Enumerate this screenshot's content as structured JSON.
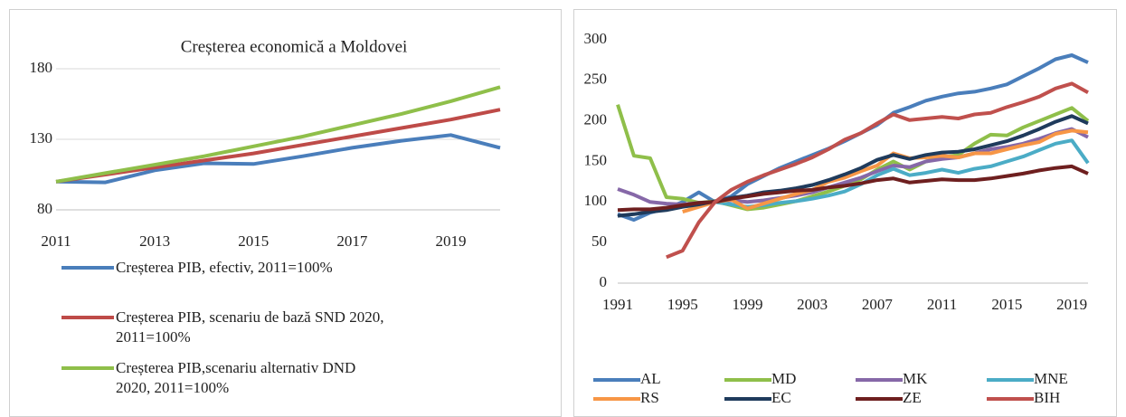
{
  "chart_data": [
    {
      "type": "line",
      "title": "Creșterea economică a Moldovei",
      "x": [
        2011,
        2012,
        2013,
        2014,
        2015,
        2016,
        2017,
        2018,
        2019,
        2020
      ],
      "xlim": [
        2011,
        2020
      ],
      "xticks": [
        2011,
        2013,
        2015,
        2017,
        2019
      ],
      "ylim": [
        80,
        180
      ],
      "yticks": [
        80,
        130,
        180
      ],
      "grid": true,
      "legend": "bottom",
      "series": [
        {
          "name": "Creșterea PIB, efectiv, 2011=100%",
          "color": "#4a7ebb",
          "values": [
            100,
            99.5,
            108,
            113,
            112.5,
            118,
            124,
            129,
            133,
            124
          ]
        },
        {
          "name": "Creșterea PIB, scenariu de bază SND 2020, 2011=100%",
          "color": "#be4b48",
          "values": [
            100,
            105,
            110,
            115,
            120,
            126,
            132,
            138,
            144,
            151
          ]
        },
        {
          "name": "Creșterea PIB,scenariu alternativ DND 2020, 2011=100%",
          "color": "#8fbf4a",
          "values": [
            100,
            106,
            112,
            118,
            125,
            132,
            140,
            148,
            157,
            167
          ]
        }
      ]
    },
    {
      "type": "line",
      "x": [
        1991,
        1992,
        1993,
        1994,
        1995,
        1996,
        1997,
        1998,
        1999,
        2000,
        2001,
        2002,
        2003,
        2004,
        2005,
        2006,
        2007,
        2008,
        2009,
        2010,
        2011,
        2012,
        2013,
        2014,
        2015,
        2016,
        2017,
        2018,
        2019,
        2020
      ],
      "xlim": [
        1991,
        2020
      ],
      "xticks": [
        1991,
        1995,
        1999,
        2003,
        2007,
        2011,
        2015,
        2019
      ],
      "ylim": [
        0,
        300
      ],
      "yticks": [
        0,
        50,
        100,
        150,
        200,
        250,
        300
      ],
      "grid": false,
      "legend": "bottom",
      "series": [
        {
          "name": "AL",
          "color": "#4a7ebb",
          "values": [
            85,
            78,
            87,
            92,
            100,
            112,
            100,
            107,
            122,
            132,
            142,
            150,
            158,
            166,
            175,
            185,
            195,
            210,
            217,
            225,
            230,
            234,
            236,
            240,
            245,
            255,
            265,
            276,
            281,
            272
          ]
        },
        {
          "name": "MD",
          "color": "#8fbf4a",
          "values": [
            220,
            157,
            154,
            106,
            104,
            99,
            101,
            96,
            91,
            93,
            97,
            101,
            107,
            113,
            120,
            128,
            140,
            150,
            140,
            150,
            155,
            158,
            172,
            183,
            182,
            192,
            200,
            208,
            216,
            200
          ]
        },
        {
          "name": "MK",
          "color": "#8668a8",
          "values": [
            116,
            109,
            100,
            98,
            97,
            99,
            100,
            102,
            100,
            102,
            105,
            108,
            112,
            118,
            124,
            130,
            138,
            145,
            143,
            150,
            153,
            155,
            160,
            165,
            168,
            172,
            178,
            185,
            190,
            180
          ]
        },
        {
          "name": "MNE",
          "color": "#4bacc6",
          "values": [
            null,
            null,
            null,
            null,
            null,
            null,
            100,
            97,
            94,
            96,
            99,
            101,
            104,
            108,
            113,
            122,
            133,
            141,
            133,
            136,
            140,
            136,
            141,
            144,
            150,
            156,
            164,
            172,
            176,
            148
          ]
        },
        {
          "name": "RS",
          "color": "#f79646",
          "values": [
            null,
            null,
            null,
            null,
            88,
            94,
            100,
            103,
            92,
            98,
            104,
            110,
            115,
            125,
            130,
            138,
            145,
            160,
            154,
            155,
            157,
            155,
            160,
            160,
            165,
            170,
            174,
            184,
            188,
            186
          ]
        },
        {
          "name": "EC",
          "color": "#1f3b5c",
          "values": [
            83,
            85,
            88,
            90,
            94,
            97,
            101,
            105,
            108,
            112,
            114,
            117,
            121,
            127,
            134,
            142,
            152,
            158,
            153,
            158,
            161,
            162,
            165,
            170,
            175,
            182,
            190,
            199,
            206,
            197
          ]
        },
        {
          "name": "ZE",
          "color": "#6e1f1f",
          "values": [
            90,
            91,
            91,
            93,
            96,
            99,
            100,
            104,
            107,
            110,
            112,
            114,
            115,
            118,
            120,
            123,
            127,
            129,
            124,
            126,
            128,
            127,
            127,
            129,
            132,
            135,
            139,
            142,
            144,
            135
          ]
        },
        {
          "name": "BIH",
          "color": "#c0504d",
          "values": [
            null,
            null,
            null,
            32,
            40,
            75,
            100,
            115,
            125,
            133,
            140,
            147,
            155,
            165,
            177,
            185,
            197,
            208,
            201,
            203,
            205,
            203,
            208,
            210,
            217,
            223,
            230,
            240,
            246,
            235
          ]
        }
      ]
    }
  ]
}
